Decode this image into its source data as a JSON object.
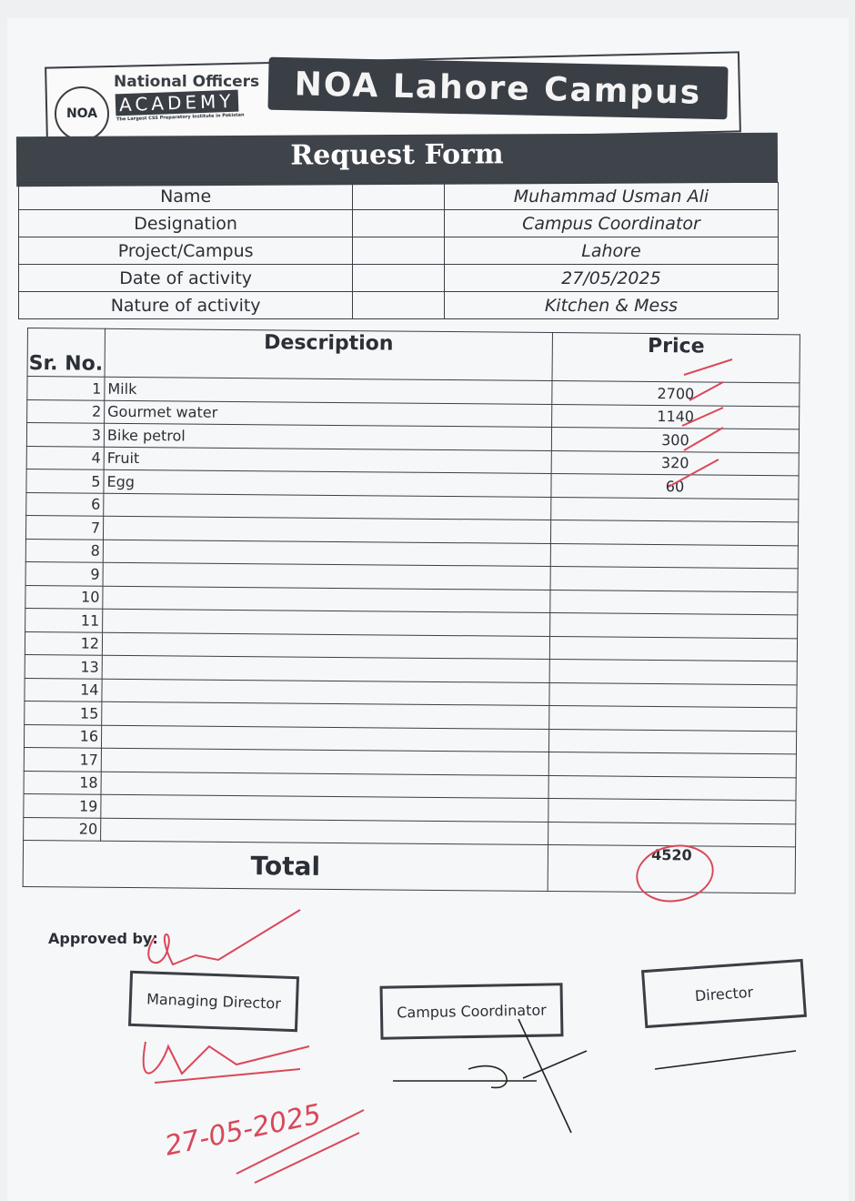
{
  "header": {
    "logo_line1": "National Officers",
    "logo_line2": "ACADEMY",
    "logo_tagline": "The Largest CSS Preparatory Institute in Pakistan",
    "seal_text": "NOA",
    "campus_banner": "NOA Lahore Campus",
    "form_title": "Request Form"
  },
  "info": [
    {
      "label": "Name",
      "value": "Muhammad Usman Ali"
    },
    {
      "label": "Designation",
      "value": "Campus Coordinator"
    },
    {
      "label": "Project/Campus",
      "value": "Lahore"
    },
    {
      "label": "Date of activity",
      "value": "27/05/2025"
    },
    {
      "label": "Nature of activity",
      "value": "Kitchen & Mess"
    }
  ],
  "table": {
    "headers": [
      "Sr. No.",
      "Description",
      "Price"
    ],
    "rows": [
      {
        "sr": "1",
        "desc": "Milk",
        "price": "2700"
      },
      {
        "sr": "2",
        "desc": "Gourmet water",
        "price": "1140"
      },
      {
        "sr": "3",
        "desc": "Bike petrol",
        "price": "300"
      },
      {
        "sr": "4",
        "desc": "Fruit",
        "price": "320"
      },
      {
        "sr": "5",
        "desc": "Egg",
        "price": "60"
      },
      {
        "sr": "6",
        "desc": "",
        "price": ""
      },
      {
        "sr": "7",
        "desc": "",
        "price": ""
      },
      {
        "sr": "8",
        "desc": "",
        "price": ""
      },
      {
        "sr": "9",
        "desc": "",
        "price": ""
      },
      {
        "sr": "10",
        "desc": "",
        "price": ""
      },
      {
        "sr": "11",
        "desc": "",
        "price": ""
      },
      {
        "sr": "12",
        "desc": "",
        "price": ""
      },
      {
        "sr": "13",
        "desc": "",
        "price": ""
      },
      {
        "sr": "14",
        "desc": "",
        "price": ""
      },
      {
        "sr": "15",
        "desc": "",
        "price": ""
      },
      {
        "sr": "16",
        "desc": "",
        "price": ""
      },
      {
        "sr": "17",
        "desc": "",
        "price": ""
      },
      {
        "sr": "18",
        "desc": "",
        "price": ""
      },
      {
        "sr": "19",
        "desc": "",
        "price": ""
      },
      {
        "sr": "20",
        "desc": "",
        "price": ""
      }
    ],
    "total_label": "Total",
    "total_value": "4520"
  },
  "approval": {
    "label": "Approved by:",
    "boxes": [
      "Managing Director",
      "Campus Coordinator",
      "Director"
    ],
    "handwritten_date": "27-05-2025"
  },
  "colors": {
    "ink": "#3a3e45",
    "red_pen": "#d9485a",
    "paper": "#f6f7f8"
  }
}
